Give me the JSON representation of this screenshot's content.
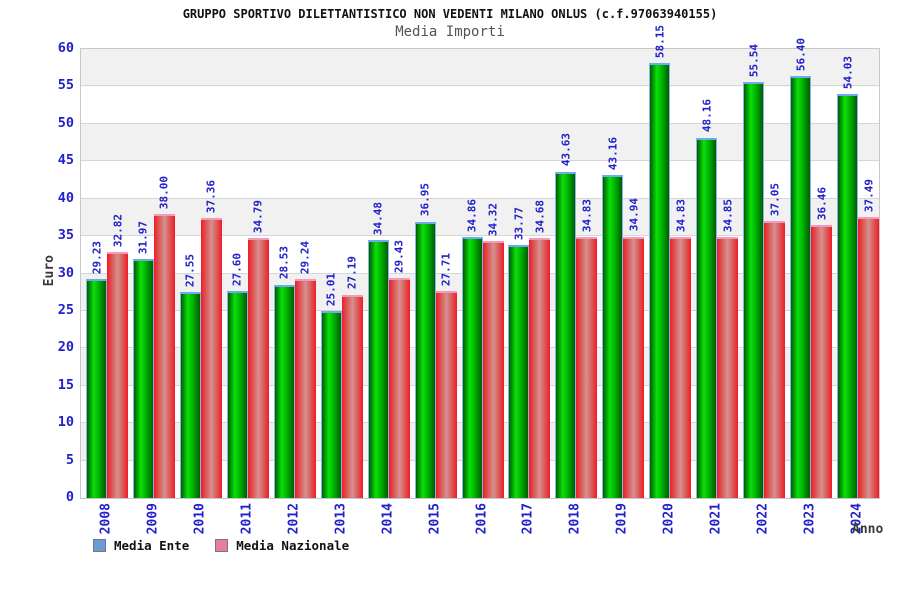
{
  "chart_data": {
    "type": "bar",
    "title": "GRUPPO SPORTIVO DILETTANTISTICO NON VEDENTI MILANO ONLUS (c.f.97063940155)",
    "subtitle": "Media Importi",
    "xlabel": "Anno",
    "ylabel": "Euro",
    "ylim": [
      0,
      60
    ],
    "y_ticks": [
      0,
      5,
      10,
      15,
      20,
      25,
      30,
      35,
      40,
      45,
      50,
      55,
      60
    ],
    "grid": "horizontal gridlines every 5 with alternating white/gray bands",
    "legend_position": "bottom-left",
    "value_labels_shown": true,
    "value_label_rotation": "vertical-bottom-up",
    "value_decimals": 2,
    "categories": [
      "2008",
      "2009",
      "2010",
      "2011",
      "2012",
      "2013",
      "2014",
      "2015",
      "2016",
      "2017",
      "2018",
      "2019",
      "2020",
      "2021",
      "2022",
      "2023",
      "2024"
    ],
    "series": [
      {
        "name": "Media Ente",
        "values": [
          29.23,
          31.97,
          27.55,
          27.6,
          28.53,
          25.01,
          34.48,
          36.95,
          34.86,
          33.77,
          43.63,
          43.16,
          58.15,
          48.16,
          55.54,
          56.4,
          54.03
        ]
      },
      {
        "name": "Media Nazionale",
        "values": [
          32.82,
          38.0,
          37.36,
          34.79,
          29.24,
          27.19,
          29.43,
          27.71,
          34.32,
          34.68,
          34.83,
          34.94,
          34.83,
          34.85,
          37.05,
          36.46,
          37.49
        ]
      }
    ]
  },
  "colors": {
    "axis_text_blue": "#2121c8",
    "value_label_blue": "#2121c8",
    "band_gray": "#f1f1f1",
    "band_white": "#ffffff",
    "gridline": "#d6d6d6",
    "plot_border": "#c8c8c8",
    "media_ente_bar": {
      "dark": "#015c01",
      "bright": "#0ae00a",
      "mid": "#00b300",
      "cap": "#6fa9f2",
      "outline": "#8ab4ee"
    },
    "media_nazionale_bar": {
      "edge": "#f51a2a",
      "dark": "#e04545",
      "mid": "#d59191",
      "cap": "#f29ab8",
      "outline": "#f06a86"
    },
    "legend_swatch_media_ente": "#6c9bd8",
    "legend_swatch_media_nazionale": "#e87da4"
  }
}
